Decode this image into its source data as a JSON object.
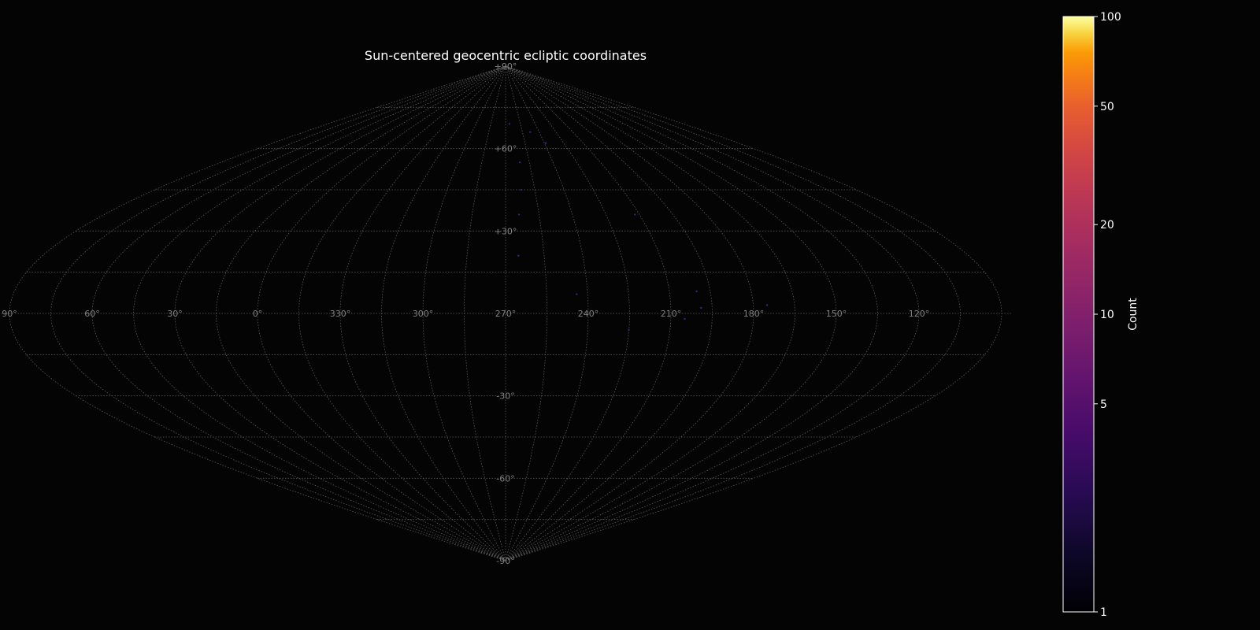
{
  "chart_data": {
    "type": "scatter",
    "projection": "sinusoidal",
    "title": "Sun-centered geocentric ecliptic coordinates",
    "grid": true,
    "center_longitude": 270,
    "longitude_ticks": [
      60,
      30,
      0,
      330,
      300,
      270,
      240,
      210,
      180,
      150,
      120,
      90
    ],
    "longitude_tick_labels": [
      "60°",
      "30°",
      "0°",
      "330°",
      "300°",
      "270°",
      "240°",
      "210°",
      "180°",
      "150°",
      "120°",
      "90°"
    ],
    "latitude_ticks": [
      90,
      60,
      30,
      -30,
      -60,
      -90
    ],
    "latitude_tick_labels": [
      "+90°",
      "+60°",
      "+30°",
      "-30°",
      "-60°",
      "-90°"
    ],
    "colorbar": {
      "label": "Count",
      "scale": "log",
      "range": [
        1,
        100
      ],
      "colormap": "inferno",
      "ticks": [
        1,
        5,
        10,
        20,
        50,
        100
      ],
      "tick_labels": [
        "1",
        "5",
        "10",
        "20",
        "50",
        "100"
      ],
      "placement": "right"
    },
    "colors": {
      "background": "#040404",
      "grid": "#5a5a5a",
      "point": "#2a2a8a"
    },
    "points": [
      {
        "lon": 266,
        "lat": 69,
        "count": 1
      },
      {
        "lon": 248,
        "lat": 66,
        "count": 1
      },
      {
        "lon": 239,
        "lat": 62,
        "count": 1
      },
      {
        "lon": 261,
        "lat": 55,
        "count": 1
      },
      {
        "lon": 262,
        "lat": 45,
        "count": 1
      },
      {
        "lon": 264,
        "lat": 36,
        "count": 1
      },
      {
        "lon": 212,
        "lat": 36,
        "count": 1
      },
      {
        "lon": 265,
        "lat": 21,
        "count": 1
      },
      {
        "lon": 244,
        "lat": 7,
        "count": 1
      },
      {
        "lon": 200,
        "lat": 8,
        "count": 1
      },
      {
        "lon": 175,
        "lat": 3,
        "count": 1
      },
      {
        "lon": 199,
        "lat": 2,
        "count": 1
      },
      {
        "lon": 205,
        "lat": -2,
        "count": 1
      },
      {
        "lon": 225,
        "lat": -6,
        "count": 1
      }
    ]
  }
}
